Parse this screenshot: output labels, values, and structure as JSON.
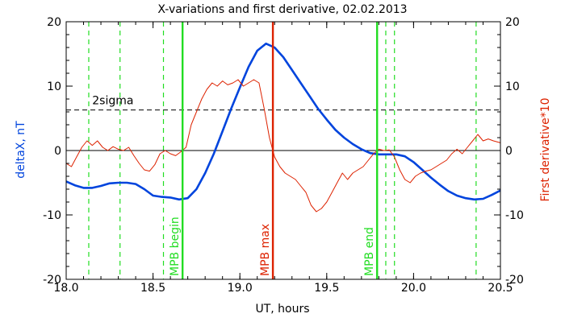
{
  "chart_data": {
    "type": "line",
    "title": "X-variations and first derivative, 02.02.2013",
    "xlabel": "UT, hours",
    "ylabel_left": "deltaX, nT",
    "ylabel_right": "First derivative*10",
    "xlim": [
      18.0,
      20.5
    ],
    "ylim_left": [
      -20,
      20
    ],
    "ylim_right": [
      -20,
      20
    ],
    "x_ticks": [
      "18.0",
      "18.5",
      "19.0",
      "19.5",
      "20.0",
      "20.5"
    ],
    "y_ticks_left": [
      "-20",
      "-10",
      "0",
      "10",
      "20"
    ],
    "y_ticks_right": [
      "-20",
      "-10",
      "0",
      "10",
      "20"
    ],
    "colors": {
      "deltaX": "#0044dd",
      "derivative": "#dd2200",
      "mpb_green": "#22dd22",
      "mpb_red": "#dd2200",
      "axes": "#000000"
    },
    "sigma_label": "2sigma",
    "sigma_level": 6.3,
    "zero_level": 0,
    "vlines_dashed": [
      18.13,
      18.31,
      18.56,
      19.84,
      19.89,
      20.36
    ],
    "vlines_solid": [
      {
        "x": 18.67,
        "label": "MPB begin",
        "color": "#22dd22"
      },
      {
        "x": 19.19,
        "label": "MPB max",
        "color": "#dd2200"
      },
      {
        "x": 19.79,
        "label": "MPB end",
        "color": "#22dd22"
      }
    ],
    "series": [
      {
        "name": "deltaX",
        "axis": "left",
        "x": [
          18.0,
          18.05,
          18.1,
          18.15,
          18.2,
          18.25,
          18.3,
          18.35,
          18.4,
          18.45,
          18.5,
          18.55,
          18.6,
          18.65,
          18.7,
          18.75,
          18.8,
          18.85,
          18.9,
          18.95,
          19.0,
          19.05,
          19.1,
          19.15,
          19.2,
          19.25,
          19.3,
          19.35,
          19.4,
          19.45,
          19.5,
          19.55,
          19.6,
          19.65,
          19.7,
          19.75,
          19.8,
          19.85,
          19.9,
          19.95,
          20.0,
          20.05,
          20.1,
          20.15,
          20.2,
          20.25,
          20.3,
          20.35,
          20.4,
          20.45,
          20.5
        ],
        "y": [
          -4.8,
          -5.4,
          -5.8,
          -5.8,
          -5.5,
          -5.1,
          -5.0,
          -5.0,
          -5.2,
          -6.0,
          -7.0,
          -7.2,
          -7.3,
          -7.6,
          -7.4,
          -6.0,
          -3.5,
          -0.5,
          3.0,
          6.5,
          9.8,
          13.0,
          15.5,
          16.6,
          16.0,
          14.5,
          12.5,
          10.5,
          8.5,
          6.5,
          4.8,
          3.2,
          2.0,
          1.0,
          0.2,
          -0.4,
          -0.6,
          -0.6,
          -0.6,
          -0.9,
          -1.8,
          -3.0,
          -4.2,
          -5.3,
          -6.3,
          -7.0,
          -7.4,
          -7.6,
          -7.5,
          -6.9,
          -6.2
        ]
      },
      {
        "name": "First derivative*10",
        "axis": "right",
        "x": [
          18.0,
          18.03,
          18.06,
          18.09,
          18.12,
          18.15,
          18.18,
          18.21,
          18.24,
          18.27,
          18.3,
          18.33,
          18.36,
          18.39,
          18.42,
          18.45,
          18.48,
          18.51,
          18.54,
          18.57,
          18.6,
          18.63,
          18.66,
          18.69,
          18.72,
          18.75,
          18.78,
          18.81,
          18.84,
          18.87,
          18.9,
          18.93,
          18.96,
          18.99,
          19.02,
          19.05,
          19.08,
          19.11,
          19.14,
          19.17,
          19.2,
          19.23,
          19.26,
          19.29,
          19.32,
          19.35,
          19.38,
          19.41,
          19.44,
          19.47,
          19.5,
          19.53,
          19.56,
          19.59,
          19.62,
          19.65,
          19.68,
          19.71,
          19.74,
          19.77,
          19.8,
          19.83,
          19.86,
          19.89,
          19.92,
          19.95,
          19.98,
          20.01,
          20.04,
          20.07,
          20.1,
          20.13,
          20.16,
          20.19,
          20.22,
          20.25,
          20.28,
          20.31,
          20.34,
          20.37,
          20.4,
          20.43,
          20.46,
          20.5
        ],
        "y": [
          -2.0,
          -2.5,
          -1.0,
          0.5,
          1.5,
          0.8,
          1.5,
          0.5,
          0.0,
          0.6,
          0.2,
          0.0,
          0.5,
          -0.8,
          -2.0,
          -3.0,
          -3.2,
          -2.2,
          -0.5,
          0.0,
          -0.5,
          -0.8,
          -0.2,
          0.5,
          4.0,
          6.0,
          8.0,
          9.5,
          10.5,
          10.0,
          10.8,
          10.2,
          10.5,
          11.0,
          10.0,
          10.5,
          11.0,
          10.5,
          6.5,
          2.0,
          -1.0,
          -2.5,
          -3.5,
          -4.0,
          -4.5,
          -5.5,
          -6.5,
          -8.5,
          -9.5,
          -9.0,
          -8.0,
          -6.5,
          -5.0,
          -3.5,
          -4.5,
          -3.5,
          -3.0,
          -2.5,
          -1.5,
          -0.5,
          0.2,
          0.0,
          0.1,
          -1.0,
          -3.0,
          -4.5,
          -5.0,
          -4.0,
          -3.5,
          -3.2,
          -3.0,
          -2.5,
          -2.0,
          -1.5,
          -0.5,
          0.2,
          -0.5,
          0.5,
          1.5,
          2.5,
          1.5,
          1.8,
          1.5,
          1.2
        ]
      }
    ]
  }
}
